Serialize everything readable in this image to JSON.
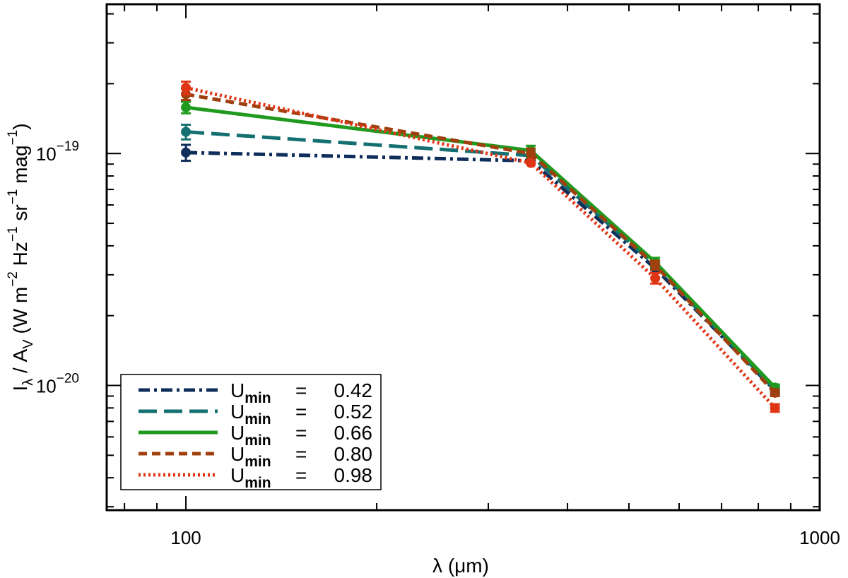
{
  "chart_data": {
    "type": "line",
    "xlabel": "λ (μm)",
    "ylabel": "I_λ / A_V (W m^-2 Hz^-1 sr^-1 mag^-1)",
    "x_scale": "log",
    "y_scale": "log",
    "xlim": [
      75,
      1000
    ],
    "ylim": [
      2.9e-21,
      4.4e-19
    ],
    "x_tick_labels": [
      {
        "value": 100,
        "label": "100"
      },
      {
        "value": 1000,
        "label": "1000"
      }
    ],
    "y_tick_labels": [
      {
        "value": 1e-19,
        "base": "10",
        "exp": "−19"
      },
      {
        "value": 1e-20,
        "base": "10",
        "exp": "−20"
      }
    ],
    "x": [
      100,
      350,
      550,
      850
    ],
    "series": [
      {
        "name": "0.42",
        "color": "#0f2d5a",
        "dash": "dashdot",
        "values": [
          1.01e-19,
          9.3e-20,
          3.2e-20,
          9.5e-21
        ],
        "err": [
          8e-21,
          5e-22,
          1.5e-21,
          3e-22
        ]
      },
      {
        "name": "0.52",
        "color": "#147070",
        "dash": "longdash",
        "values": [
          1.24e-19,
          9.8e-20,
          3.3e-20,
          9.6e-21
        ],
        "err": [
          9e-21,
          5e-22,
          1.5e-21,
          3e-22
        ]
      },
      {
        "name": "0.66",
        "color": "#1f9a1f",
        "dash": "solid",
        "values": [
          1.58e-19,
          1.03e-19,
          3.4e-20,
          9.8e-21
        ],
        "err": [
          9e-21,
          5e-21,
          1.5e-21,
          3e-22
        ]
      },
      {
        "name": "0.80",
        "color": "#a0400f",
        "dash": "dashed",
        "values": [
          1.8e-19,
          1e-19,
          3.3e-20,
          9.3e-21
        ],
        "err": [
          1e-20,
          5e-21,
          1.5e-21,
          3e-22
        ]
      },
      {
        "name": "0.98",
        "color": "#e03515",
        "dash": "dotted",
        "values": [
          1.92e-19,
          9.1e-20,
          2.9e-20,
          8e-21
        ],
        "err": [
          1.2e-20,
          5e-22,
          1.5e-21,
          3e-22
        ]
      }
    ],
    "legend": {
      "position": "bottom-left",
      "prefix": "U",
      "subscript": "min",
      "equals": "="
    }
  }
}
